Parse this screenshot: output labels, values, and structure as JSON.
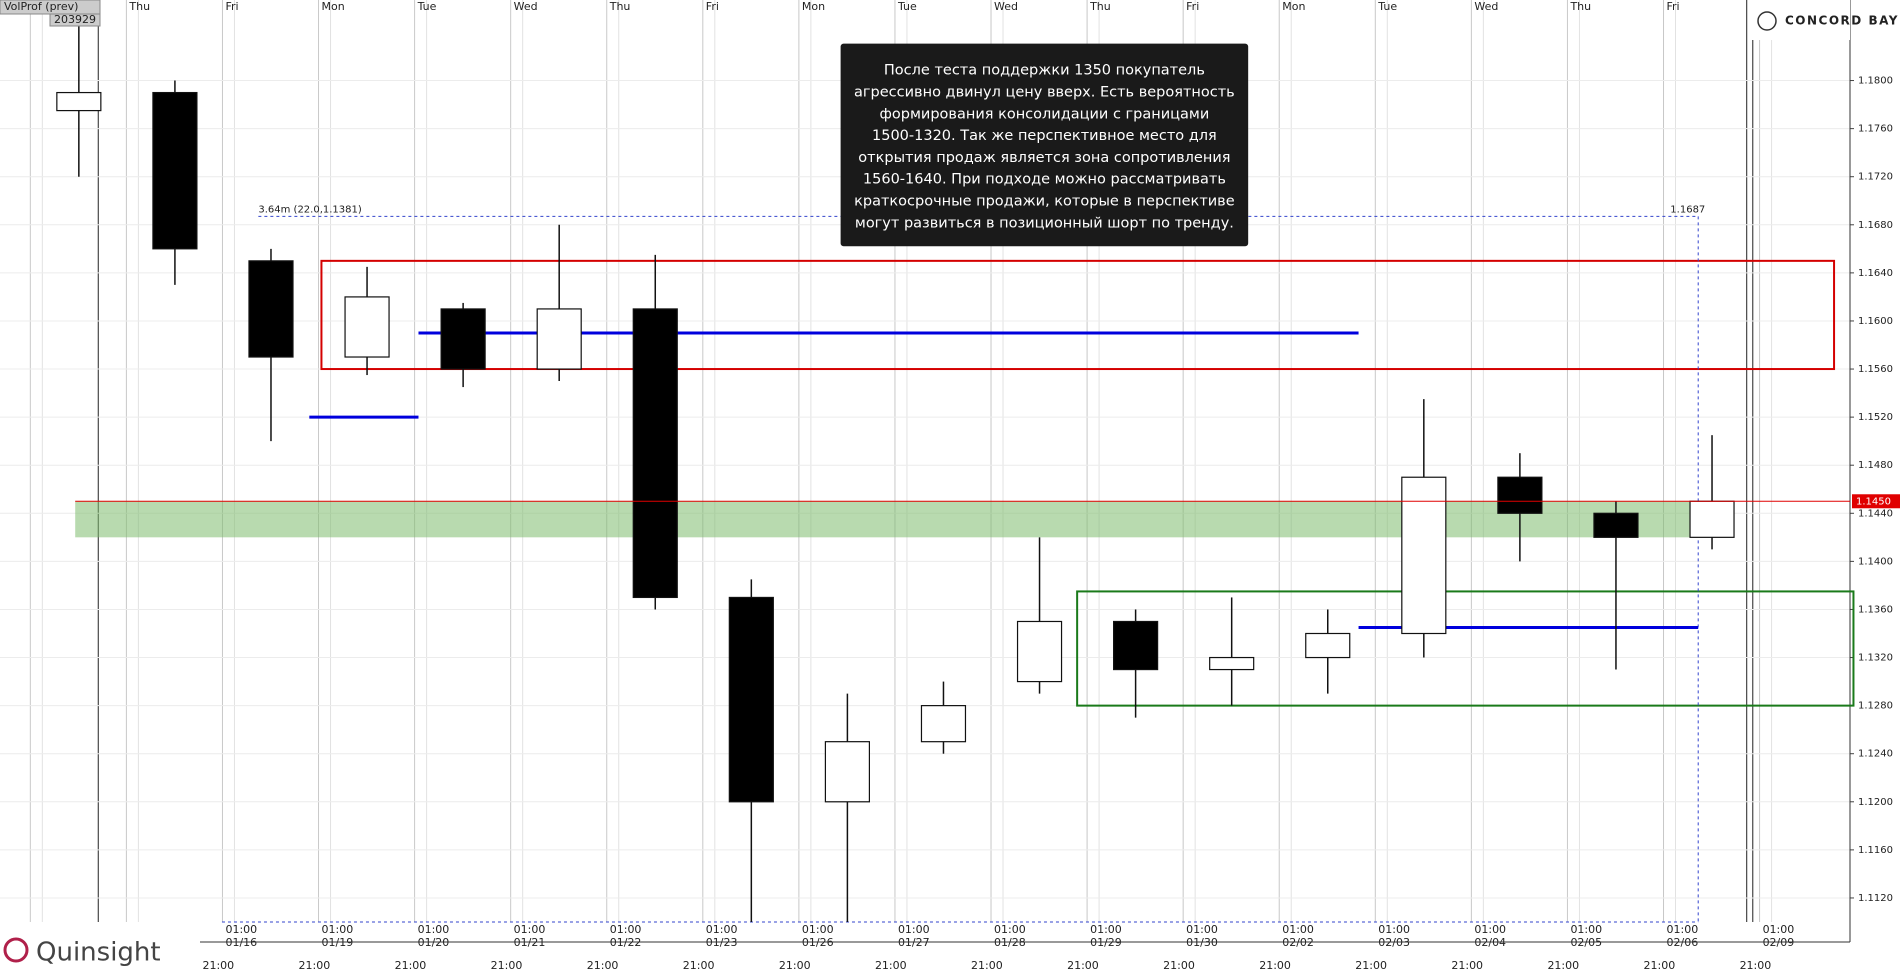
{
  "header": {
    "indicator": "VolProf (prev)",
    "indicator_value": "203929",
    "brand": "CONCORD BAY",
    "logo": "Quinsight"
  },
  "chart_data": {
    "type": "candlestick",
    "categories": [
      null,
      null,
      "01/16",
      "01/19",
      "01/20",
      "01/21",
      "01/22",
      "01/23",
      "01/26",
      "01/27",
      "01/28",
      "01/29",
      "01/30",
      "02/02",
      "02/03",
      "02/04",
      "02/05",
      "02/06",
      "02/09"
    ],
    "day_labels": [
      null,
      "Thu",
      "Fri",
      "Mon",
      "Tue",
      "Wed",
      "Thu",
      "Fri",
      "Mon",
      "Tue",
      "Wed",
      "Thu",
      "Fri",
      "Mon",
      "Tue",
      "Wed",
      "Thu",
      "Fri",
      null
    ],
    "session_time": "01:00",
    "bar_time": "21:00",
    "series": {
      "open": [
        1.1775,
        1.179,
        1.165,
        1.157,
        1.161,
        1.156,
        1.161,
        1.137,
        1.12,
        1.125,
        1.13,
        1.135,
        1.131,
        1.132,
        1.134,
        1.147,
        1.144,
        1.142,
        null
      ],
      "high": [
        1.1862,
        1.18,
        1.166,
        1.1645,
        1.1615,
        1.168,
        1.1655,
        1.1385,
        1.129,
        1.13,
        1.142,
        1.136,
        1.137,
        1.136,
        1.1535,
        1.149,
        1.145,
        1.1505,
        null
      ],
      "low": [
        1.172,
        1.163,
        1.15,
        1.1555,
        1.1545,
        1.155,
        1.136,
        1.11,
        1.11,
        1.124,
        1.129,
        1.127,
        1.128,
        1.129,
        1.132,
        1.14,
        1.131,
        1.141,
        null
      ],
      "close": [
        1.179,
        1.166,
        1.157,
        1.162,
        1.156,
        1.161,
        1.137,
        1.12,
        1.125,
        1.128,
        1.135,
        1.131,
        1.132,
        1.134,
        1.147,
        1.144,
        1.142,
        1.145,
        null
      ]
    },
    "up_color": "#ffffff",
    "down_color": "#000000",
    "ylim": [
      1.11,
      1.1867
    ],
    "yticks": [
      {
        "value": 1.112,
        "label": "1.1120"
      },
      {
        "value": 1.116,
        "label": "1.1160"
      },
      {
        "value": 1.12,
        "label": "1.1200"
      },
      {
        "value": 1.124,
        "label": "1.1240"
      },
      {
        "value": 1.128,
        "label": "1.1280"
      },
      {
        "value": 1.132,
        "label": "1.1320"
      },
      {
        "value": 1.136,
        "label": "1.1360"
      },
      {
        "value": 1.14,
        "label": "1.1400"
      },
      {
        "value": 1.144,
        "label": "1.1440"
      },
      {
        "value": 1.148,
        "label": "1.1480"
      },
      {
        "value": 1.152,
        "label": "1.1520"
      },
      {
        "value": 1.156,
        "label": "1.1560"
      },
      {
        "value": 1.16,
        "label": "1.1600"
      },
      {
        "value": 1.164,
        "label": "1.1640"
      },
      {
        "value": 1.168,
        "label": "1.1680"
      },
      {
        "value": 1.172,
        "label": "1.1720"
      },
      {
        "value": 1.176,
        "label": "1.1760"
      },
      {
        "value": 1.18,
        "label": "1.1800"
      }
    ],
    "zones": [
      {
        "low": 1.156,
        "high": 1.165,
        "color": "#d40000"
      },
      {
        "low": 1.128,
        "high": 1.1375,
        "color": "#1a7a1a"
      },
      {
        "low": 1.142,
        "high": 1.145,
        "color": "#7dbb6e"
      }
    ],
    "levels": [
      {
        "value": 1.152,
        "color": "#0000dd"
      },
      {
        "value": 1.159,
        "color": "#0000dd"
      },
      {
        "value": 1.1345,
        "color": "#0000dd"
      }
    ],
    "last_price": {
      "value": 1.145,
      "label": "1.1450",
      "color": "#e00000"
    },
    "profile_high": {
      "value": 1.1687,
      "label": "1.1687"
    },
    "profile_info": "3.64m (22.0,1.1381)",
    "note_lines": [
      "После теста поддержки 1350 покупатель",
      "агрессивно двинул цену вверх. Есть вероятность",
      "формирования консолидации с границами",
      "1500-1320. Так же перспективное место для",
      "открытия продаж является зона сопротивления",
      "1560-1640. При подходе можно рассматривать",
      "краткосрочные продажи, которые в перспективе",
      "могут развиться в позиционный шорт по тренду."
    ]
  }
}
